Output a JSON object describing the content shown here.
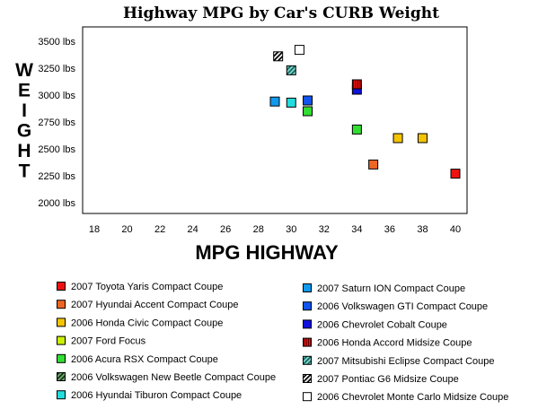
{
  "chart_data": {
    "type": "scatter",
    "title": "Highway MPG by Car's CURB Weight",
    "xlabel": "MPG HIGHWAY",
    "ylabel": "WEIGHT",
    "xlim": [
      18,
      40
    ],
    "ylim": [
      1950,
      3650
    ],
    "x_ticks": [
      18,
      20,
      22,
      24,
      26,
      28,
      30,
      32,
      34,
      36,
      38,
      40
    ],
    "x_tick_labels": [
      "18",
      "20",
      "22",
      "24",
      "26",
      "28",
      "30",
      "32",
      "34",
      "36",
      "38",
      "40"
    ],
    "y_ticks": [
      2000,
      2250,
      2500,
      2750,
      3000,
      3250,
      3500
    ],
    "y_tick_labels": [
      "2000 lbs",
      "2250 lbs",
      "2500 lbs",
      "2750 lbs",
      "3000 lbs",
      "3250 lbs",
      "3500 lbs"
    ],
    "grid": false,
    "legend_position": "bottom",
    "series": [
      {
        "name": "2007 Toyota Yaris Compact Coupe",
        "color": "#ee1111",
        "pattern": "solid",
        "points": [
          [
            40,
            2270
          ]
        ]
      },
      {
        "name": "2007 Hyundai Accent Compact Coupe",
        "color": "#ee6622",
        "pattern": "solid",
        "points": [
          [
            35,
            2355
          ]
        ]
      },
      {
        "name": "2006 Honda Civic Compact Coupe",
        "color": "#f5c400",
        "pattern": "solid",
        "points": [
          [
            36.5,
            2600
          ],
          [
            38,
            2600
          ]
        ]
      },
      {
        "name": "2007 Ford Focus",
        "color": "#ccf000",
        "pattern": "solid",
        "points": []
      },
      {
        "name": "2006 Acura RSX Compact Coupe",
        "color": "#33dd33",
        "pattern": "solid",
        "points": [
          [
            34,
            2680
          ],
          [
            31,
            2850
          ]
        ]
      },
      {
        "name": "2006 Volkswagen New Beetle Compact Coupe",
        "color": "#116611",
        "pattern": "hatch",
        "points": []
      },
      {
        "name": "2006 Hyundai Tiburon Compact Coupe",
        "color": "#22dddd",
        "pattern": "solid",
        "points": [
          [
            30,
            2930
          ]
        ]
      },
      {
        "name": "2007 Saturn ION Compact Coupe",
        "color": "#1199ee",
        "pattern": "solid",
        "points": [
          [
            29,
            2940
          ]
        ]
      },
      {
        "name": "2006 Volkswagen GTI Compact Coupe",
        "color": "#1155ee",
        "pattern": "solid",
        "points": [
          [
            31,
            2950
          ]
        ]
      },
      {
        "name": "2006 Chevrolet Cobalt Coupe",
        "color": "#1111dd",
        "pattern": "solid",
        "points": [
          [
            34,
            3050
          ]
        ]
      },
      {
        "name": "2006 Honda Accord Midsize Coupe",
        "color": "#991111",
        "pattern": "hatch-red",
        "points": [
          [
            34,
            3100
          ]
        ]
      },
      {
        "name": "2007 Mitsubishi Eclipse Compact Coupe",
        "color": "#22bbaa",
        "pattern": "hatch",
        "points": [
          [
            30,
            3230
          ]
        ]
      },
      {
        "name": "2007 Pontiac G6 Midsize Coupe",
        "color": "#ffffff",
        "pattern": "hatch-black",
        "points": [
          [
            29.2,
            3360
          ]
        ]
      },
      {
        "name": "2006 Chevrolet Monte Carlo Midsize Coupe",
        "color": "#ffffff",
        "pattern": "solid",
        "points": [
          [
            30.5,
            3420
          ]
        ]
      }
    ]
  }
}
